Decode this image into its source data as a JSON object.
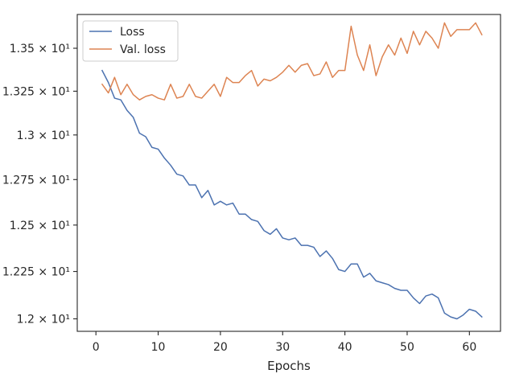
{
  "chart_data": {
    "type": "line",
    "xlabel": "Epochs",
    "ylabel": "",
    "xlim": [
      -3,
      65
    ],
    "ylim": [
      11.935,
      13.7
    ],
    "xticks": [
      0,
      10,
      20,
      30,
      40,
      50,
      60
    ],
    "yticks": [
      {
        "value": 12.0,
        "label": "1.2 × 10¹"
      },
      {
        "value": 12.25,
        "label": "1.225 × 10¹"
      },
      {
        "value": 12.5,
        "label": "1.25 × 10¹"
      },
      {
        "value": 12.75,
        "label": "1.275 × 10¹"
      },
      {
        "value": 13.0,
        "label": "1.3 × 10¹"
      },
      {
        "value": 13.25,
        "label": "1.325 × 10¹"
      },
      {
        "value": 13.5,
        "label": "1.35 × 10¹"
      }
    ],
    "yscale": "log",
    "grid": false,
    "legend_position": "top-left",
    "series": [
      {
        "name": "Loss",
        "color": "#4c72b0",
        "x": [
          1,
          2,
          3,
          4,
          5,
          6,
          7,
          8,
          9,
          10,
          11,
          12,
          13,
          14,
          15,
          16,
          17,
          18,
          19,
          20,
          21,
          22,
          23,
          24,
          25,
          26,
          27,
          28,
          29,
          30,
          31,
          32,
          33,
          34,
          35,
          36,
          37,
          38,
          39,
          40,
          41,
          42,
          43,
          44,
          45,
          46,
          47,
          48,
          49,
          50,
          51,
          52,
          53,
          54,
          55,
          56,
          57,
          58,
          59,
          60,
          61,
          62
        ],
        "values": [
          13.37,
          13.3,
          13.21,
          13.2,
          13.14,
          13.1,
          13.01,
          12.99,
          12.93,
          12.92,
          12.87,
          12.83,
          12.78,
          12.77,
          12.72,
          12.72,
          12.65,
          12.69,
          12.61,
          12.63,
          12.61,
          12.62,
          12.56,
          12.56,
          12.53,
          12.52,
          12.47,
          12.45,
          12.48,
          12.43,
          12.42,
          12.43,
          12.39,
          12.39,
          12.38,
          12.33,
          12.36,
          12.32,
          12.26,
          12.25,
          12.29,
          12.29,
          12.22,
          12.24,
          12.2,
          12.19,
          12.18,
          12.16,
          12.15,
          12.15,
          12.11,
          12.08,
          12.12,
          12.13,
          12.11,
          12.03,
          12.01,
          12.0,
          12.02,
          12.05,
          12.04,
          12.01
        ]
      },
      {
        "name": "Val. loss",
        "color": "#dd8452",
        "x": [
          1,
          2,
          3,
          4,
          5,
          6,
          7,
          8,
          9,
          10,
          11,
          12,
          13,
          14,
          15,
          16,
          17,
          18,
          19,
          20,
          21,
          22,
          23,
          24,
          25,
          26,
          27,
          28,
          29,
          30,
          31,
          32,
          33,
          34,
          35,
          36,
          37,
          38,
          39,
          40,
          41,
          42,
          43,
          44,
          45,
          46,
          47,
          48,
          49,
          50,
          51,
          52,
          53,
          54,
          55,
          56,
          57,
          58,
          59,
          60,
          61,
          62
        ],
        "values": [
          13.29,
          13.24,
          13.33,
          13.23,
          13.29,
          13.23,
          13.2,
          13.22,
          13.23,
          13.21,
          13.2,
          13.29,
          13.21,
          13.22,
          13.29,
          13.22,
          13.21,
          13.25,
          13.29,
          13.22,
          13.33,
          13.3,
          13.3,
          13.34,
          13.37,
          13.28,
          13.32,
          13.31,
          13.33,
          13.36,
          13.4,
          13.36,
          13.4,
          13.41,
          13.34,
          13.35,
          13.42,
          13.33,
          13.37,
          13.37,
          13.63,
          13.46,
          13.37,
          13.52,
          13.34,
          13.45,
          13.52,
          13.46,
          13.56,
          13.47,
          13.6,
          13.52,
          13.6,
          13.56,
          13.5,
          13.65,
          13.57,
          13.61,
          13.61,
          13.61,
          13.65,
          13.58
        ]
      }
    ]
  }
}
